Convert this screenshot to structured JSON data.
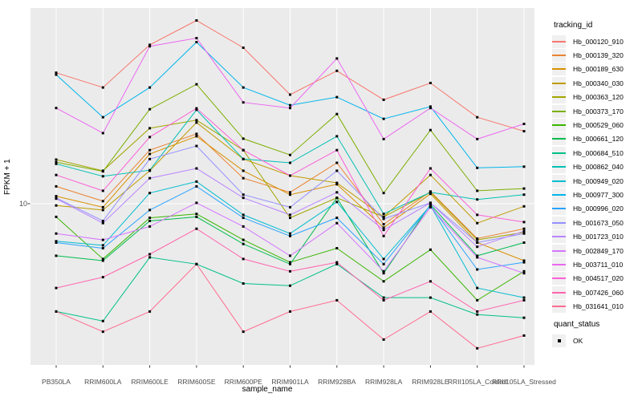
{
  "chart_data": {
    "type": "line",
    "xlabel": "sample_name",
    "ylabel": "FPKM + 1",
    "y_scale": "log10",
    "y_tick_labels": [
      "10"
    ],
    "ylim": [
      1.6,
      95
    ],
    "grid": true,
    "legend_position": "right",
    "legend_title": "tracking_id",
    "x": [
      "PB350LA",
      "RRIM600LA",
      "RRIM600LE",
      "RRIM600SE",
      "RRIM600PE",
      "RRIM901LA",
      "RRIM928BA",
      "RRIM928LA",
      "RRIM928LE",
      "RRII105LA_Control",
      "RRII105LA_Stressed"
    ],
    "series": [
      {
        "name": "Hb_000120_910",
        "color": "#F8766D",
        "values": [
          45,
          38,
          62,
          82,
          60,
          35,
          46,
          33,
          40,
          27,
          23
        ]
      },
      {
        "name": "Hb_000139_320",
        "color": "#EA8331",
        "values": [
          12.2,
          10.3,
          18.5,
          22.3,
          13.4,
          11.4,
          16,
          7.9,
          11.5,
          6.7,
          7.5
        ]
      },
      {
        "name": "Hb_000189_630",
        "color": "#D89000",
        "values": [
          10.9,
          9.6,
          17.7,
          21.7,
          14.6,
          11.1,
          12.5,
          7.6,
          11.2,
          6.4,
          5.2
        ]
      },
      {
        "name": "Hb_000340_030",
        "color": "#C09B00",
        "values": [
          9.8,
          9.3,
          14.6,
          25.4,
          16.7,
          13.8,
          12.7,
          8.6,
          13.9,
          8,
          9.7
        ]
      },
      {
        "name": "Hb_000363_120",
        "color": "#A3A500",
        "values": [
          16.6,
          14.6,
          23.8,
          26.1,
          18.5,
          8.5,
          10.7,
          8.6,
          11.4,
          6.6,
          7.2
        ]
      },
      {
        "name": "Hb_000373_170",
        "color": "#7CAE00",
        "values": [
          16.1,
          14.5,
          29.6,
          39.4,
          21.1,
          17.5,
          28,
          11.3,
          23.3,
          11.6,
          11.9
        ]
      },
      {
        "name": "Hb_000529_060",
        "color": "#39B600",
        "values": [
          8.6,
          5.3,
          8.5,
          8.9,
          6.6,
          5.1,
          6,
          4.1,
          5.9,
          3.3,
          4.6
        ]
      },
      {
        "name": "Hb_000661_120",
        "color": "#00BB4E",
        "values": [
          5.5,
          5.2,
          8.2,
          8.6,
          6.3,
          5,
          10.7,
          4.5,
          9.9,
          5.5,
          6.4
        ]
      },
      {
        "name": "Hb_000684_510",
        "color": "#00C087",
        "values": [
          2.9,
          2.6,
          5.4,
          5,
          4,
          3.9,
          5,
          3.4,
          3.4,
          2.8,
          2.7
        ]
      },
      {
        "name": "Hb_000862_040",
        "color": "#00C0B4",
        "values": [
          15.8,
          13.7,
          14.7,
          29.4,
          16.7,
          16,
          21.7,
          8.9,
          11.4,
          10.5,
          11.1
        ]
      },
      {
        "name": "Hb_000949_020",
        "color": "#00BDD0",
        "values": [
          6.5,
          6.2,
          11.3,
          12.9,
          8.8,
          7.1,
          10.2,
          5.3,
          9.8,
          3.8,
          3.4
        ]
      },
      {
        "name": "Hb_000977_300",
        "color": "#00B5EC",
        "values": [
          44,
          27,
          38,
          64,
          38,
          31,
          34,
          26.5,
          30.5,
          15.1,
          15.3
        ]
      },
      {
        "name": "Hb_000996_020",
        "color": "#29A3FF",
        "values": [
          6.4,
          6,
          9.3,
          12.2,
          8.5,
          6.9,
          8.5,
          5,
          9.8,
          4.7,
          5.1
        ]
      },
      {
        "name": "Hb_001673_050",
        "color": "#9590FF",
        "values": [
          10.7,
          8.2,
          16.7,
          19.4,
          11.1,
          9.6,
          14.6,
          8.4,
          10.1,
          6.4,
          7.1
        ]
      },
      {
        "name": "Hb_001723_010",
        "color": "#B983FF",
        "values": [
          10.6,
          8,
          13.4,
          15,
          10.7,
          8.8,
          11.4,
          7.4,
          10.1,
          6.1,
          7.3
        ]
      },
      {
        "name": "Hb_002849_170",
        "color": "#D575FE",
        "values": [
          7.1,
          6.6,
          7.7,
          10.1,
          7.7,
          5.5,
          8,
          4.6,
          9.6,
          5.4,
          4.5
        ]
      },
      {
        "name": "Hb_003711_010",
        "color": "#EC67F1",
        "values": [
          30,
          22.5,
          61,
          67,
          32,
          30,
          53,
          21,
          30,
          21,
          25
        ]
      },
      {
        "name": "Hb_004517_020",
        "color": "#FB61D7",
        "values": [
          13.9,
          11.6,
          21.5,
          29.9,
          18.5,
          13.8,
          18.5,
          6.9,
          15,
          8.8,
          8.1
        ]
      },
      {
        "name": "Hb_007426_060",
        "color": "#FF65AE",
        "values": [
          3.8,
          4.3,
          5.6,
          7.5,
          5.3,
          4.6,
          5.1,
          3.3,
          4.1,
          2.9,
          3.3
        ]
      },
      {
        "name": "Hb_031641_010",
        "color": "#FF6C91",
        "values": [
          2.9,
          2.3,
          2.9,
          5,
          2.3,
          2.9,
          3.3,
          2.1,
          2.9,
          1.9,
          2.2
        ]
      }
    ],
    "quant_status": {
      "title": "quant_status",
      "items": [
        "OK"
      ]
    },
    "colors": {
      "panel_bg": "#EBEBEB",
      "grid": "#FFFFFF",
      "point": "#000000",
      "tick": "#333333",
      "tick_text": "#4D4D4D",
      "legend_key_bg": "#F0F0F0"
    }
  }
}
